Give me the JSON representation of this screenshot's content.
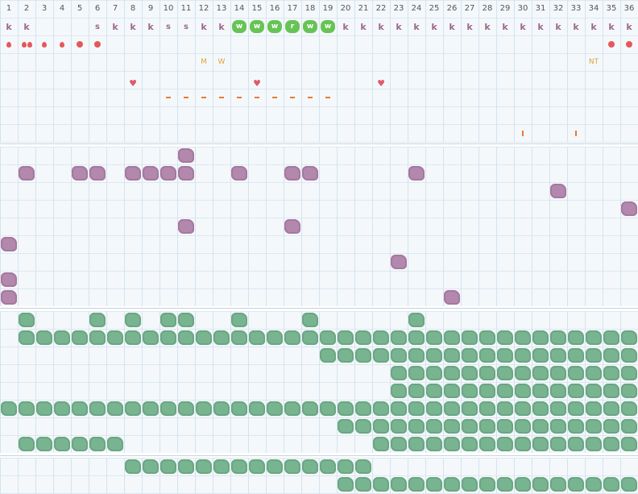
{
  "days": [
    "1",
    "2",
    "3",
    "4",
    "5",
    "6",
    "7",
    "8",
    "9",
    "10",
    "11",
    "12",
    "13",
    "14",
    "15",
    "16",
    "17",
    "18",
    "19",
    "20",
    "21",
    "22",
    "23",
    "24",
    "25",
    "26",
    "27",
    "28",
    "29",
    "30",
    "31",
    "32",
    "33",
    "34",
    "35",
    "36"
  ],
  "colors": {
    "grid_bg": "#f4f8fb",
    "grid_line": "#d5e3ee",
    "purple": "#b288ad",
    "green": "#79b491",
    "badge_green": "#66c455",
    "red": "#e5585a",
    "orange": "#e8793a",
    "gold": "#e0a33a"
  },
  "top": {
    "row1": [
      "k",
      "k",
      "",
      "",
      "",
      "s",
      "k",
      "k",
      "k",
      "s",
      "s",
      "k",
      "k",
      "w",
      "w",
      "w",
      "r",
      "w",
      "w",
      "k",
      "k",
      "k",
      "k",
      "k",
      "k",
      "k",
      "k",
      "k",
      "k",
      "k",
      "k",
      "k",
      "k",
      "k",
      "k",
      "k"
    ],
    "row1_badge_days": [
      14,
      15,
      16,
      17,
      18,
      19
    ],
    "row2": [
      "drop",
      "drop2",
      "drop",
      "drop",
      "dot",
      "dot",
      "",
      "",
      "",
      "",
      "",
      "",
      "",
      "",
      "",
      "",
      "",
      "",
      "",
      "",
      "",
      "",
      "",
      "",
      "",
      "",
      "",
      "",
      "",
      "",
      "",
      "",
      "",
      "",
      "dot",
      "dot"
    ],
    "row3": {
      "12": "M",
      "13": "W",
      "34": "NT"
    },
    "hearts": [
      8,
      15,
      22
    ],
    "dashes": [
      10,
      11,
      12,
      13,
      14,
      15,
      16,
      17,
      18,
      19
    ],
    "ticks": [
      30,
      33
    ]
  },
  "purple_rows": [
    [
      11
    ],
    [
      2,
      5,
      6,
      8,
      9,
      10,
      11,
      14,
      17,
      18,
      24
    ],
    [
      32
    ],
    [
      36
    ],
    [
      11,
      17
    ],
    [
      1
    ],
    [
      23
    ],
    [
      1
    ],
    [
      1,
      26
    ]
  ],
  "green_rows": [
    [
      2,
      6,
      8,
      10,
      11,
      14,
      18,
      24
    ],
    [
      [
        2,
        36
      ]
    ],
    [
      [
        19,
        36
      ]
    ],
    [
      [
        23,
        36
      ]
    ],
    [
      [
        23,
        36
      ]
    ],
    [
      [
        1,
        36
      ]
    ],
    [
      [
        20,
        36
      ]
    ],
    [
      [
        2,
        7
      ],
      [
        22,
        36
      ]
    ]
  ],
  "bottom_rows": [
    [
      [
        8,
        21
      ]
    ],
    [
      [
        20,
        36
      ]
    ]
  ]
}
